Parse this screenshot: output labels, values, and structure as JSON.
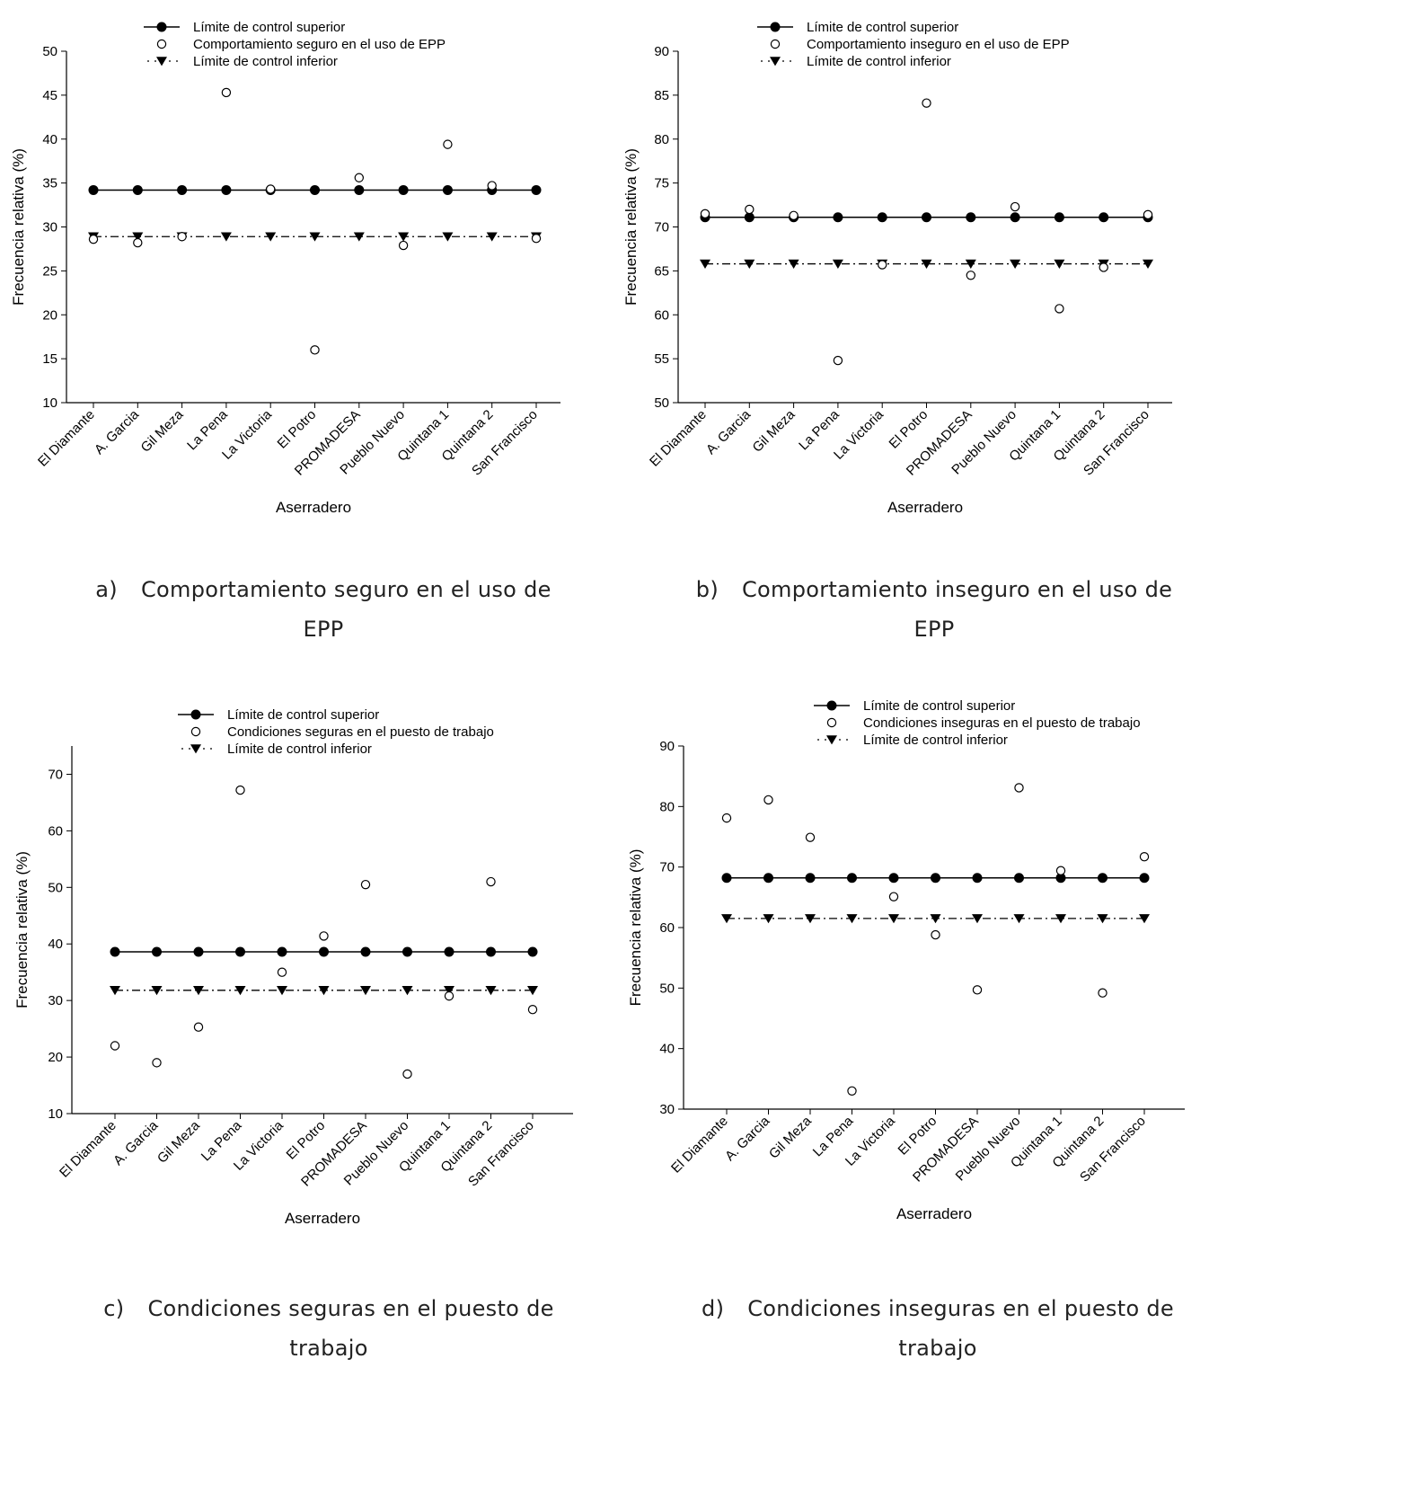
{
  "chart_data": [
    {
      "type": "scatter",
      "caption_letter": "a)",
      "caption_text": "Comportamiento seguro en el uso de EPP",
      "xlabel": "Aserradero",
      "ylabel": "Frecuencia relativa (%)",
      "ylim": [
        10,
        50
      ],
      "yticks": [
        10,
        15,
        20,
        25,
        30,
        35,
        40,
        45,
        50
      ],
      "categories": [
        "El Diamante",
        "A. Garcia",
        "Gil Meza",
        "La Pena",
        "La Victoria",
        "El Potro",
        "PROMADESA",
        "Pueblo Nuevo",
        "Quintana 1",
        "Quintana 2",
        "San Francisco"
      ],
      "legend": [
        "Límite de control superior",
        "Comportamiento seguro en el uso de EPP",
        "Límite de control inferior"
      ],
      "series": [
        {
          "name": "Límite de control superior",
          "style": "solid-filled-circle",
          "values": [
            34.2,
            34.2,
            34.2,
            34.2,
            34.2,
            34.2,
            34.2,
            34.2,
            34.2,
            34.2,
            34.2
          ]
        },
        {
          "name": "Comportamiento seguro en el uso de EPP",
          "style": "open-circle",
          "values": [
            28.6,
            28.2,
            28.9,
            45.3,
            34.3,
            16.0,
            35.6,
            27.9,
            39.4,
            34.7,
            28.7
          ]
        },
        {
          "name": "Límite de control inferior",
          "style": "dashed-triangle",
          "values": [
            28.9,
            28.9,
            28.9,
            28.9,
            28.9,
            28.9,
            28.9,
            28.9,
            28.9,
            28.9,
            28.9
          ]
        }
      ]
    },
    {
      "type": "scatter",
      "caption_letter": "b)",
      "caption_text": "Comportamiento inseguro en el uso de EPP",
      "xlabel": "Aserradero",
      "ylabel": "Frecuencia relativa (%)",
      "ylim": [
        50,
        90
      ],
      "yticks": [
        50,
        55,
        60,
        65,
        70,
        75,
        80,
        85,
        90
      ],
      "categories": [
        "El Diamante",
        "A. Garcia",
        "Gil Meza",
        "La Pena",
        "La Victoria",
        "El Potro",
        "PROMADESA",
        "Pueblo Nuevo",
        "Quintana 1",
        "Quintana 2",
        "San Francisco"
      ],
      "legend": [
        "Límite de control superior",
        "Comportamiento inseguro en el uso de EPP",
        "Límite de control inferior"
      ],
      "series": [
        {
          "name": "Límite de control superior",
          "style": "solid-filled-circle",
          "values": [
            71.1,
            71.1,
            71.1,
            71.1,
            71.1,
            71.1,
            71.1,
            71.1,
            71.1,
            71.1,
            71.1
          ]
        },
        {
          "name": "Comportamiento inseguro en el uso de EPP",
          "style": "open-circle",
          "values": [
            71.5,
            72.0,
            71.3,
            54.8,
            65.7,
            84.1,
            64.5,
            72.3,
            60.7,
            65.4,
            71.4
          ]
        },
        {
          "name": "Límite de control inferior",
          "style": "dashed-triangle",
          "values": [
            65.8,
            65.8,
            65.8,
            65.8,
            65.8,
            65.8,
            65.8,
            65.8,
            65.8,
            65.8,
            65.8
          ]
        }
      ]
    },
    {
      "type": "scatter",
      "caption_letter": "c)",
      "caption_text": "Condiciones seguras en el puesto de trabajo",
      "xlabel": "Aserradero",
      "ylabel": "Frecuencia relativa (%)",
      "ylim": [
        10,
        75
      ],
      "yticks": [
        10,
        20,
        30,
        40,
        50,
        60,
        70
      ],
      "categories": [
        "El Diamante",
        "A. Garcia",
        "Gil Meza",
        "La Pena",
        "La Victoria",
        "El Potro",
        "PROMADESA",
        "Pueblo Nuevo",
        "Quintana 1",
        "Quintana 2",
        "San Francisco"
      ],
      "legend": [
        "Límite de control superior",
        "Condiciones seguras en el puesto de trabajo",
        "Límite de control inferior"
      ],
      "series": [
        {
          "name": "Límite de control superior",
          "style": "solid-filled-circle",
          "values": [
            38.6,
            38.6,
            38.6,
            38.6,
            38.6,
            38.6,
            38.6,
            38.6,
            38.6,
            38.6,
            38.6
          ]
        },
        {
          "name": "Condiciones seguras en el puesto de trabajo",
          "style": "open-circle",
          "values": [
            22.0,
            19.0,
            25.3,
            67.2,
            35.0,
            41.4,
            50.5,
            17.0,
            30.8,
            51.0,
            28.4
          ]
        },
        {
          "name": "Límite de control inferior",
          "style": "dashed-triangle",
          "values": [
            31.8,
            31.8,
            31.8,
            31.8,
            31.8,
            31.8,
            31.8,
            31.8,
            31.8,
            31.8,
            31.8
          ]
        }
      ]
    },
    {
      "type": "scatter",
      "caption_letter": "d)",
      "caption_text": "Condiciones inseguras en el puesto de trabajo",
      "xlabel": "Aserradero",
      "ylabel": "Frecuencia relativa (%)",
      "ylim": [
        30,
        90
      ],
      "yticks": [
        30,
        40,
        50,
        60,
        70,
        80,
        90
      ],
      "categories": [
        "El Diamante",
        "A. Garcia",
        "Gil Meza",
        "La Pena",
        "La Victoria",
        "El Potro",
        "PROMADESA",
        "Pueblo Nuevo",
        "Quintana 1",
        "Quintana 2",
        "San Francisco"
      ],
      "legend": [
        "Límite de control superior",
        "Condiciones inseguras en el puesto de trabajo",
        "Límite de control inferior"
      ],
      "series": [
        {
          "name": "Límite de control superior",
          "style": "solid-filled-circle",
          "values": [
            68.2,
            68.2,
            68.2,
            68.2,
            68.2,
            68.2,
            68.2,
            68.2,
            68.2,
            68.2,
            68.2
          ]
        },
        {
          "name": "Condiciones inseguras en el puesto de trabajo",
          "style": "open-circle",
          "values": [
            78.1,
            81.1,
            74.9,
            33.0,
            65.1,
            58.8,
            49.7,
            83.1,
            69.4,
            49.2,
            71.7
          ]
        },
        {
          "name": "Límite de control inferior",
          "style": "dashed-triangle",
          "values": [
            61.5,
            61.5,
            61.5,
            61.5,
            61.5,
            61.5,
            61.5,
            61.5,
            61.5,
            61.5,
            61.5
          ]
        }
      ]
    }
  ]
}
